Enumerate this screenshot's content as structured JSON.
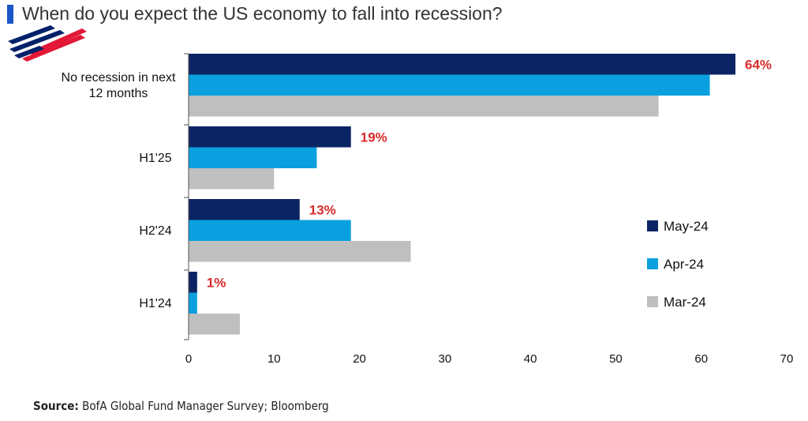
{
  "header": {
    "title": "When do you expect the US economy to fall into recession?",
    "accent_color": "#1a56c8"
  },
  "logo": {
    "name": "bank-flag-logo",
    "primary_color": "#e31837",
    "secondary_color": "#012169"
  },
  "footer": {
    "source_label": "Source:",
    "source_text": "BofA Global Fund Manager Survey; Bloomberg"
  },
  "chart_data": {
    "type": "bar",
    "orientation": "horizontal",
    "title": "When do you expect the US economy to fall into recession?",
    "categories": [
      "No recession in next 12 months",
      "H1'25",
      "H2'24",
      "H1'24"
    ],
    "category_lines": [
      [
        "No recession in next",
        "12 months"
      ],
      [
        "H1'25"
      ],
      [
        "H2'24"
      ],
      [
        "H1'24"
      ]
    ],
    "series": [
      {
        "name": "May-24",
        "color": "#0b2463",
        "values": [
          64,
          19,
          13,
          1
        ]
      },
      {
        "name": "Apr-24",
        "color": "#0aa0e0",
        "values": [
          61,
          15,
          19,
          1
        ]
      },
      {
        "name": "Mar-24",
        "color": "#bfbfbf",
        "values": [
          55,
          10,
          26,
          6
        ]
      }
    ],
    "data_labels": {
      "series": "May-24",
      "texts": [
        "64%",
        "19%",
        "13%",
        "1%"
      ],
      "color": "#d92b2b"
    },
    "xlim": [
      0,
      70
    ],
    "xticks": [
      0,
      10,
      20,
      30,
      40,
      50,
      60,
      70
    ],
    "xlabel": "",
    "ylabel": "",
    "grid": false,
    "legend_position": "right"
  }
}
